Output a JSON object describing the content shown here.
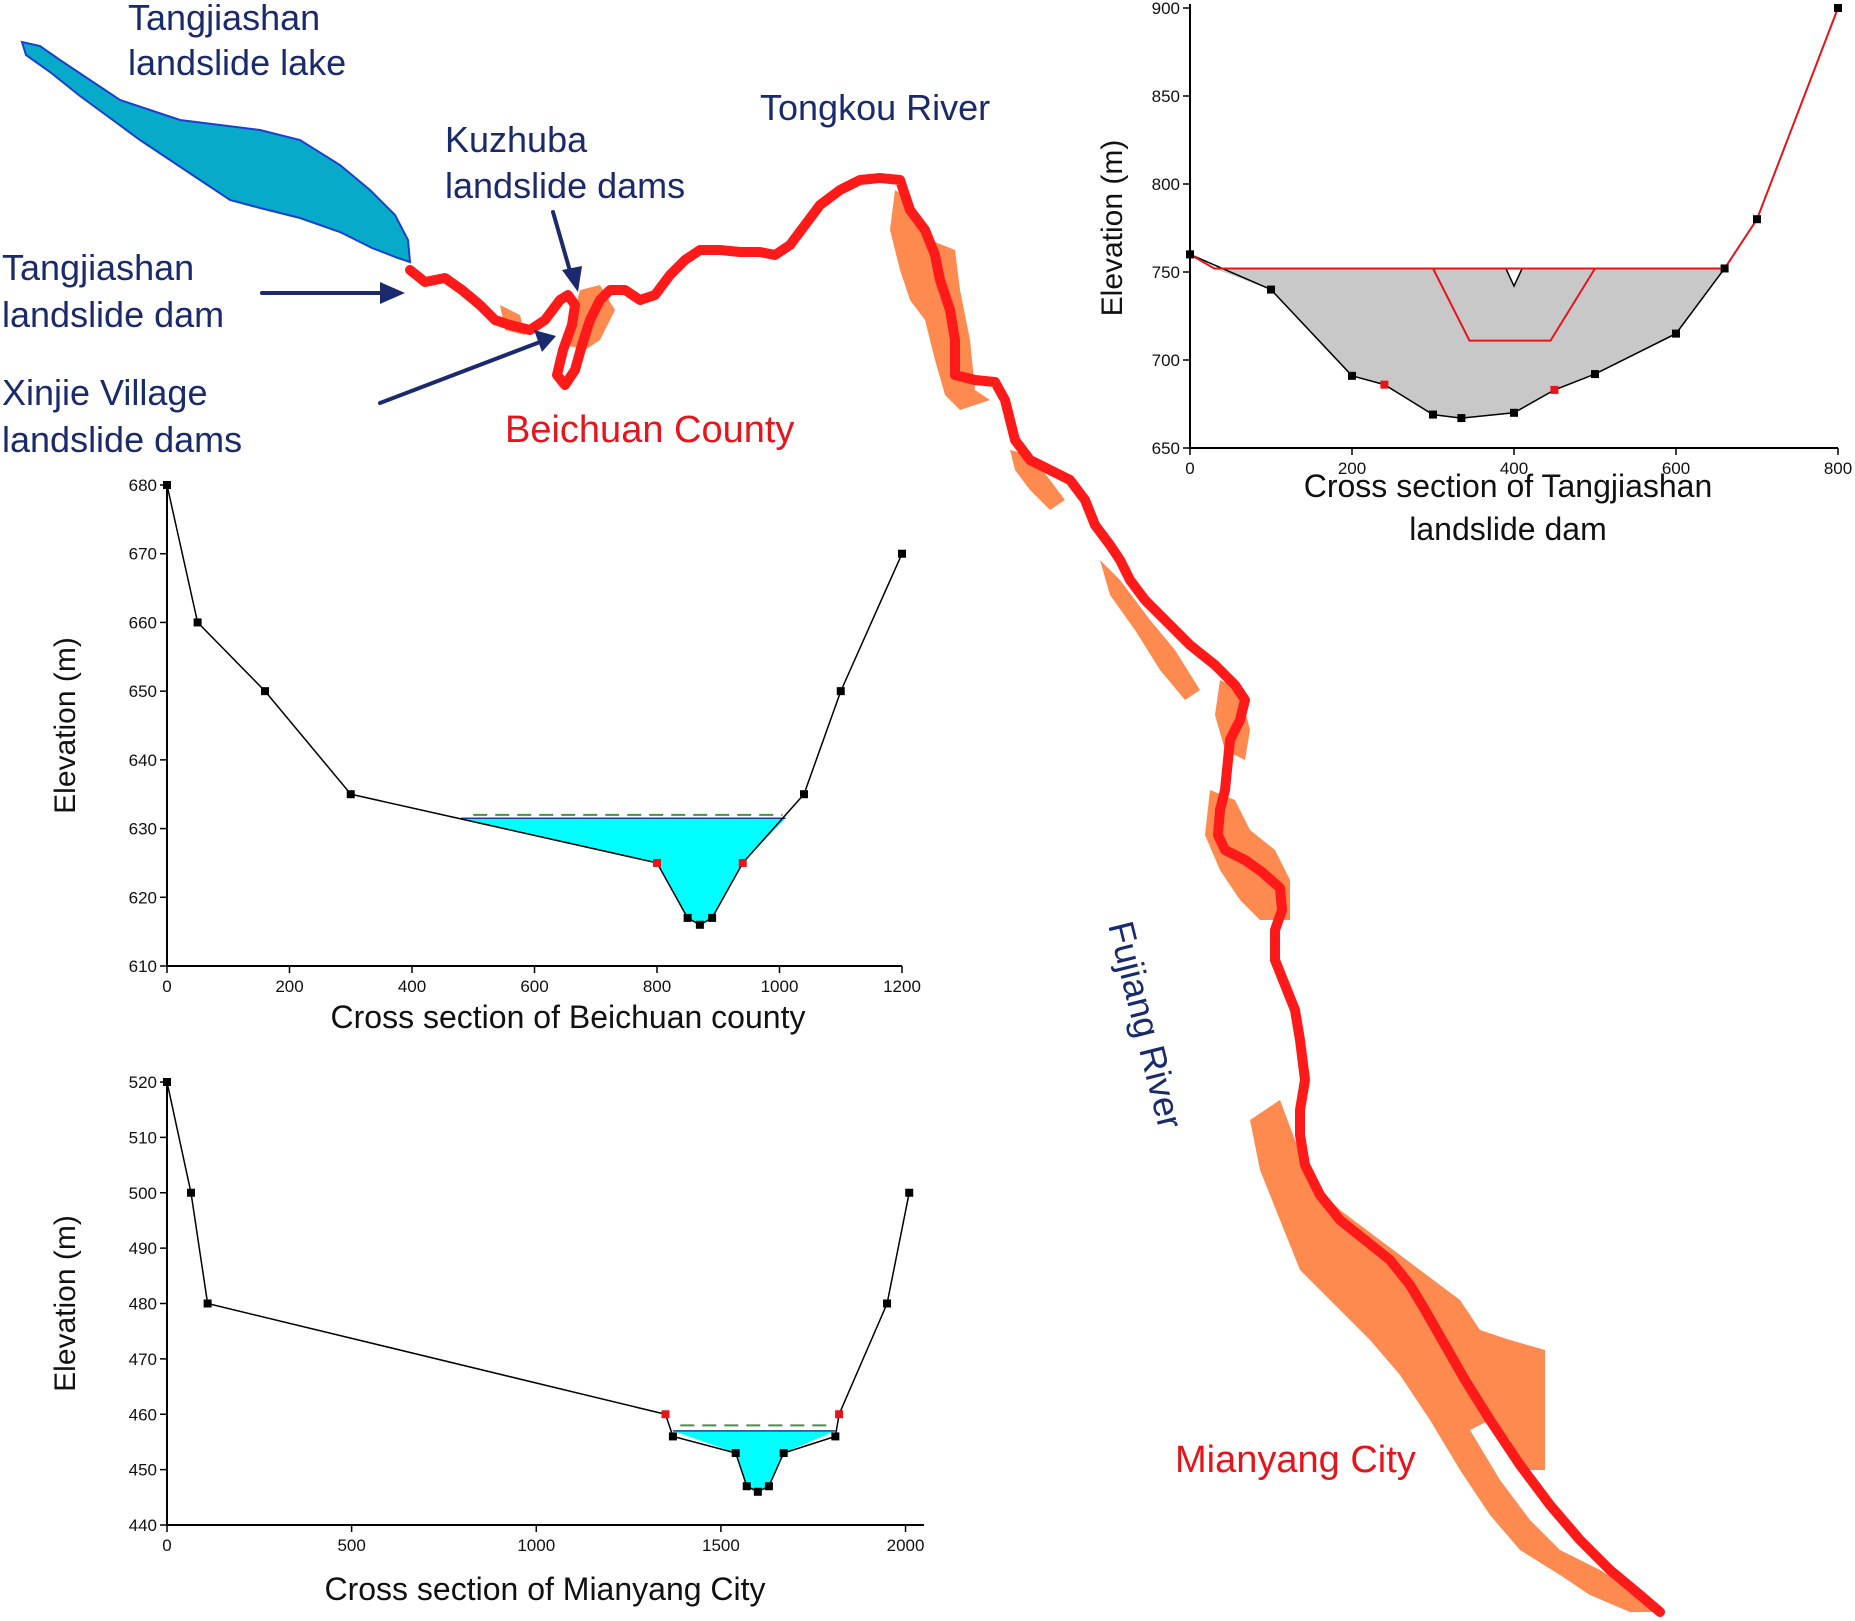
{
  "map_labels": {
    "lake": [
      "Tangjiashan",
      "landslide lake"
    ],
    "kuzhuba": [
      "Kuzhuba",
      "landslide dams"
    ],
    "tongkou": "Tongkou River",
    "tangjiashan_dam": [
      "Tangjiashan",
      "landslide dam"
    ],
    "xinjie": [
      "Xinjie Village",
      "landslide dams"
    ],
    "beichuan": "Beichuan County",
    "fujiang": "Fujiang River",
    "mianyang": "Mianyang City"
  },
  "colors": {
    "river": "#ff1a1a",
    "flood_zone": "#ff8a50",
    "lake": "#08aac9",
    "lake_outline": "#1b3fd0",
    "water": "#00ffff",
    "dam_fill": "#c8c8c8",
    "arrow": "#1a2a6c"
  },
  "chart_data": [
    {
      "id": "tangjiashan",
      "type": "line",
      "title": [
        "Cross section of Tangjiashan",
        "landslide dam"
      ],
      "ylabel": "Elevation (m)",
      "xlabel": "",
      "xlim": [
        0,
        800
      ],
      "ylim": [
        650,
        900
      ],
      "xticks": [
        0,
        200,
        400,
        600,
        800
      ],
      "yticks": [
        650,
        700,
        750,
        800,
        850,
        900
      ],
      "terrain": [
        [
          0,
          760
        ],
        [
          100,
          740
        ],
        [
          200,
          691
        ],
        [
          240,
          686
        ],
        [
          300,
          669
        ],
        [
          335,
          667
        ],
        [
          400,
          670
        ],
        [
          450,
          683
        ],
        [
          500,
          692
        ],
        [
          600,
          715
        ],
        [
          660,
          752
        ],
        [
          700,
          780
        ],
        [
          800,
          900
        ]
      ],
      "dam_top": [
        [
          30,
          752
        ],
        [
          300,
          752
        ],
        [
          390,
          752
        ],
        [
          400,
          742
        ],
        [
          410,
          752
        ],
        [
          660,
          752
        ]
      ],
      "breach_channel": [
        [
          300,
          752
        ],
        [
          345,
          711
        ],
        [
          445,
          711
        ],
        [
          500,
          752
        ]
      ],
      "water_line": [
        [
          0,
          760
        ],
        [
          30,
          752
        ],
        [
          660,
          752
        ]
      ]
    },
    {
      "id": "beichuan",
      "type": "line",
      "title": [
        "Cross section of Beichuan county"
      ],
      "ylabel": "Elevation (m)",
      "xlabel": "",
      "xlim": [
        0,
        1200
      ],
      "ylim": [
        610,
        680
      ],
      "xticks": [
        0,
        200,
        400,
        600,
        800,
        1000,
        1200
      ],
      "yticks": [
        610,
        620,
        630,
        640,
        650,
        660,
        670,
        680
      ],
      "terrain": [
        [
          0,
          680
        ],
        [
          50,
          660
        ],
        [
          160,
          650
        ],
        [
          300,
          635
        ],
        [
          800,
          625
        ],
        [
          850,
          617
        ],
        [
          870,
          616
        ],
        [
          890,
          617
        ],
        [
          940,
          625
        ],
        [
          1040,
          635
        ],
        [
          1100,
          650
        ],
        [
          1200,
          670
        ]
      ],
      "water_level": 631.5,
      "water_extent": [
        480,
        1010
      ],
      "dashed_level": 632
    },
    {
      "id": "mianyang",
      "type": "line",
      "title": [
        "Cross section of Mianyang City"
      ],
      "ylabel": "Elevation (m)",
      "xlabel": "",
      "xlim": [
        0,
        2050
      ],
      "ylim": [
        440,
        520
      ],
      "xticks": [
        0,
        500,
        1000,
        1500,
        2000
      ],
      "yticks": [
        440,
        450,
        460,
        470,
        480,
        490,
        500,
        510,
        520
      ],
      "terrain": [
        [
          0,
          520
        ],
        [
          65,
          500
        ],
        [
          110,
          480
        ],
        [
          1350,
          460
        ],
        [
          1370,
          456
        ],
        [
          1540,
          453
        ],
        [
          1570,
          447
        ],
        [
          1600,
          446
        ],
        [
          1630,
          447
        ],
        [
          1670,
          453
        ],
        [
          1810,
          456
        ],
        [
          1820,
          460
        ],
        [
          1950,
          480
        ],
        [
          2010,
          500
        ]
      ],
      "water_level": 457,
      "water_extent": [
        1370,
        1810
      ],
      "dashed_level": 458
    }
  ]
}
